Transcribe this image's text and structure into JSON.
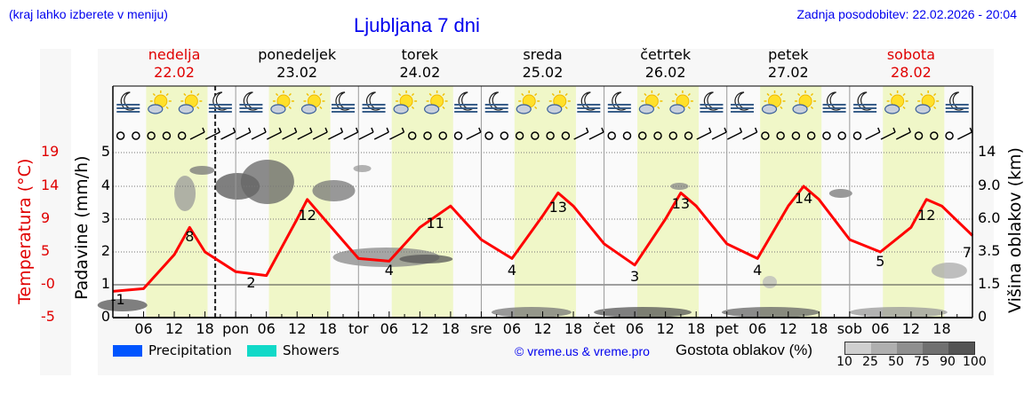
{
  "header": {
    "location_hint": "(kraj lahko izberete v meniju)",
    "title": "Ljubljana 7 dni",
    "last_update": "Zadnja posodobitev: 22.02.2026 - 20:04"
  },
  "days": [
    {
      "name": "nedelja",
      "date": "22.02",
      "weekend": true
    },
    {
      "name": "ponedeljek",
      "date": "23.02",
      "weekend": false
    },
    {
      "name": "torek",
      "date": "24.02",
      "weekend": false
    },
    {
      "name": "sreda",
      "date": "25.02",
      "weekend": false
    },
    {
      "name": "četrtek",
      "date": "26.02",
      "weekend": false
    },
    {
      "name": "petek",
      "date": "27.02",
      "weekend": false
    },
    {
      "name": "sobota",
      "date": "28.02",
      "weekend": true
    }
  ],
  "x_ticks": [
    "06",
    "12",
    "18",
    "pon",
    "06",
    "12",
    "18",
    "tor",
    "06",
    "12",
    "18",
    "sre",
    "06",
    "12",
    "18",
    "čet",
    "06",
    "12",
    "18",
    "pet",
    "06",
    "12",
    "18",
    "sob",
    "06",
    "12",
    "18"
  ],
  "axes": {
    "left_temp_label": "Temperatura (°C)",
    "left_temp_ticks": [
      "19",
      "14",
      "9",
      "5",
      "-0",
      "-5"
    ],
    "left_precip_label": "Padavine (mm/h)",
    "left_precip_ticks": [
      "5",
      "4",
      "3",
      "2",
      "1",
      "0"
    ],
    "right_cloud_label": "Višina oblakov (km)",
    "right_cloud_ticks": [
      "14",
      "9.0",
      "6.0",
      "3.5",
      "1.5",
      "0"
    ]
  },
  "legend": {
    "precipitation": "Precipitation",
    "showers": "Showers",
    "precipitation_color": "#0055ff",
    "showers_color": "#11d9c8",
    "copyright": "© vreme.us & vreme.pro",
    "cloud_density_label": "Gostota oblakov (%)",
    "cloud_density_ticks": [
      "10",
      "25",
      "50",
      "75",
      "90",
      "100"
    ],
    "cloud_density_colors": [
      "#cfcfcf",
      "#afafaf",
      "#8f8f8f",
      "#707070",
      "#545454"
    ]
  },
  "colors": {
    "temperature_line": "#ff0000",
    "daylight_band": "#f0f7c8",
    "night_band": "#fafafa",
    "weekend_text": "#e00000"
  },
  "chart_data": {
    "type": "line",
    "title": "Ljubljana 7 dni",
    "xlabel": "",
    "ylabel": "Temperatura (°C) / Padavine (mm/h)",
    "y2label": "Višina oblakov (km)",
    "temp_ylim": [
      -5,
      19
    ],
    "precip_ylim": [
      0,
      5
    ],
    "grid": true,
    "series": [
      {
        "name": "Temperatura (°C)",
        "hours": [
          0,
          6,
          12,
          15,
          18,
          24,
          30,
          36,
          38,
          42,
          48,
          54,
          60,
          66,
          72,
          78,
          84,
          87,
          90,
          96,
          102,
          108,
          111,
          114,
          120,
          126,
          132,
          135,
          138,
          144,
          150,
          156,
          159,
          162,
          168
        ],
        "values": [
          -1,
          -0.6,
          4.6,
          8,
          5,
          2,
          1.4,
          9,
          12,
          8.5,
          4,
          3.6,
          8,
          11,
          6.5,
          4,
          9.5,
          13,
          11,
          6,
          3,
          9,
          13,
          11,
          6,
          4,
          11,
          14,
          12,
          6.5,
          5,
          8,
          12,
          11,
          7
        ]
      }
    ],
    "annotations": [
      {
        "hour": 1,
        "label": "-1"
      },
      {
        "hour": 15,
        "label": "8"
      },
      {
        "hour": 27,
        "label": "2"
      },
      {
        "hour": 38,
        "label": "12"
      },
      {
        "hour": 54,
        "label": "4"
      },
      {
        "hour": 63,
        "label": "11"
      },
      {
        "hour": 78,
        "label": "4"
      },
      {
        "hour": 87,
        "label": "13"
      },
      {
        "hour": 102,
        "label": "3"
      },
      {
        "hour": 111,
        "label": "13"
      },
      {
        "hour": 126,
        "label": "4"
      },
      {
        "hour": 135,
        "label": "14"
      },
      {
        "hour": 150,
        "label": "5"
      },
      {
        "hour": 159,
        "label": "12"
      },
      {
        "hour": 168,
        "label": "7"
      }
    ],
    "precipitation": {
      "name": "Precipitation",
      "values": []
    },
    "showers": {
      "name": "Showers",
      "values": []
    },
    "current_time_marker_hour": 20
  }
}
